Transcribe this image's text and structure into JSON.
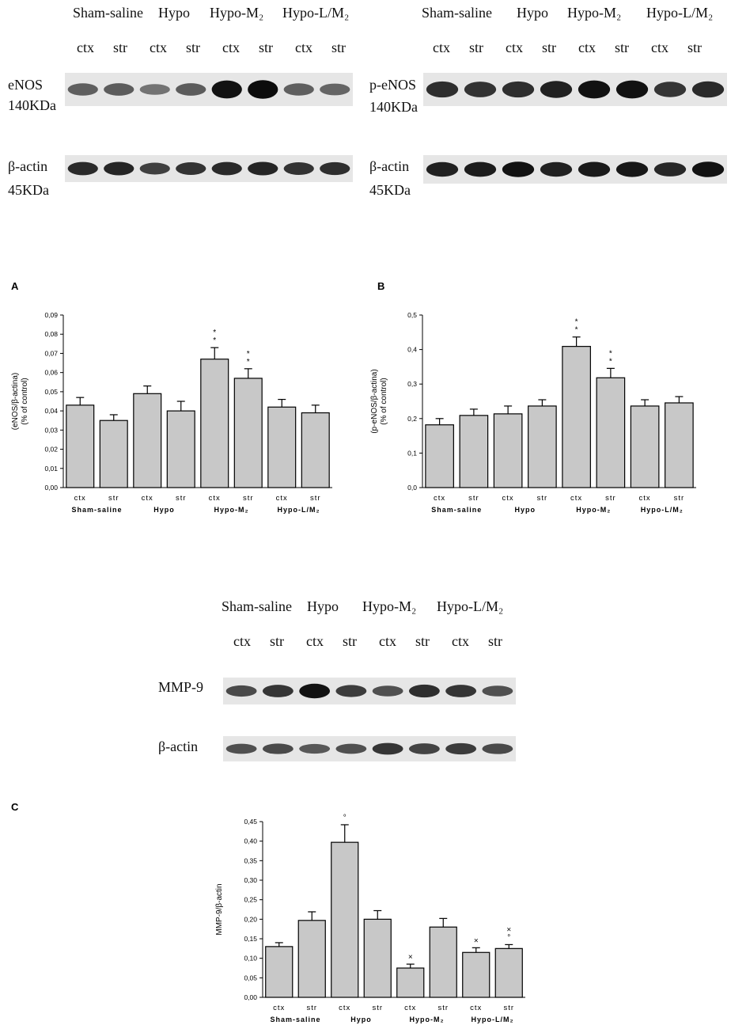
{
  "blots": [
    {
      "id": "eNOS",
      "group_labels": [
        "Sham-saline",
        "Hypo",
        "Hypo-M₂",
        "Hypo-L/M₂"
      ],
      "lane_labels": [
        "ctx",
        "str",
        "ctx",
        "str",
        "ctx",
        "str",
        "ctx",
        "str"
      ],
      "rows": [
        {
          "name": "eNOS",
          "mw": "140KDa",
          "intensities": [
            0.4,
            0.42,
            0.25,
            0.42,
            0.95,
            1.0,
            0.4,
            0.35
          ]
        },
        {
          "name": "β-actin",
          "mw": "45KDa",
          "intensities": [
            0.78,
            0.82,
            0.62,
            0.72,
            0.78,
            0.82,
            0.72,
            0.75
          ]
        }
      ]
    },
    {
      "id": "p-eNOS",
      "group_labels": [
        "Sham-saline",
        "Hypo",
        "Hypo-M₂",
        "Hypo-L/M₂"
      ],
      "lane_labels": [
        "ctx",
        "str",
        "ctx",
        "str",
        "ctx",
        "str",
        "ctx",
        "str"
      ],
      "rows": [
        {
          "name": "p-eNOS",
          "mw": "140KDa",
          "intensities": [
            0.75,
            0.72,
            0.75,
            0.85,
            0.95,
            0.95,
            0.7,
            0.78
          ]
        },
        {
          "name": "β-actin",
          "mw": "45KDa",
          "intensities": [
            0.85,
            0.88,
            0.95,
            0.85,
            0.9,
            0.92,
            0.8,
            0.95
          ]
        }
      ]
    },
    {
      "id": "MMP-9",
      "group_labels": [
        "Sham-saline",
        "Hypo",
        "Hypo-M₂",
        "Hypo-L/M₂"
      ],
      "lane_labels": [
        "ctx",
        "str",
        "ctx",
        "str",
        "ctx",
        "str",
        "ctx",
        "str"
      ],
      "rows": [
        {
          "name": "MMP-9",
          "mw": "",
          "intensities": [
            0.55,
            0.7,
            0.95,
            0.65,
            0.5,
            0.75,
            0.7,
            0.5
          ]
        },
        {
          "name": "β-actin",
          "mw": "",
          "intensities": [
            0.5,
            0.55,
            0.45,
            0.5,
            0.7,
            0.6,
            0.65,
            0.55
          ]
        }
      ]
    }
  ],
  "chart_data": [
    {
      "panel": "A",
      "type": "bar",
      "categories": [
        "ctx",
        "str",
        "ctx",
        "str",
        "ctx",
        "str",
        "ctx",
        "str"
      ],
      "groups": [
        "Sham-saline",
        "Hypo",
        "Hypo-M₂",
        "Hypo-L/M₂"
      ],
      "values": [
        0.043,
        0.035,
        0.049,
        0.04,
        0.067,
        0.057,
        0.042,
        0.039
      ],
      "errors": [
        0.004,
        0.003,
        0.004,
        0.005,
        0.006,
        0.005,
        0.004,
        0.004
      ],
      "annotations": [
        "",
        "",
        "",
        "",
        "*\n*",
        "*\n*",
        "",
        ""
      ],
      "ylabel": "(eNOS/β-actina)\n(% of control)",
      "ylim": [
        0,
        0.09
      ],
      "yticks": [
        "0,00",
        "0,01",
        "0,02",
        "0,03",
        "0,04",
        "0,05",
        "0,06",
        "0,07",
        "0,08",
        "0,09"
      ],
      "grid": false
    },
    {
      "panel": "B",
      "type": "bar",
      "categories": [
        "ctx",
        "str",
        "ctx",
        "str",
        "ctx",
        "str",
        "ctx",
        "str"
      ],
      "groups": [
        "Sham-saline",
        "Hypo",
        "Hypo-M₂",
        "Hypo-L/M₂"
      ],
      "values": [
        0.2,
        0.23,
        0.235,
        0.26,
        0.45,
        0.35,
        0.26,
        0.27
      ],
      "errors": [
        0.02,
        0.02,
        0.025,
        0.02,
        0.03,
        0.03,
        0.02,
        0.02
      ],
      "annotations": [
        "",
        "",
        "",
        "",
        "*\n*",
        "*\n*",
        "",
        ""
      ],
      "ylabel": "(p-eNOS/β-actina)\n(% of control)",
      "ylim": [
        0,
        0.55
      ],
      "yticks": [
        "0,0",
        "0,1",
        "0,2",
        "0,3",
        "0,4",
        "0,5"
      ],
      "grid": false
    },
    {
      "panel": "C",
      "type": "bar",
      "categories": [
        "ctx",
        "str",
        "ctx",
        "str",
        "ctx",
        "str",
        "ctx",
        "str"
      ],
      "groups": [
        "Sham-saline",
        "Hypo",
        "Hypo-M₂",
        "Hypo-L/M₂"
      ],
      "values": [
        0.13,
        0.197,
        0.397,
        0.2,
        0.075,
        0.18,
        0.115,
        0.125
      ],
      "errors": [
        0.01,
        0.022,
        0.045,
        0.022,
        0.01,
        0.022,
        0.012,
        0.01
      ],
      "annotations": [
        "",
        "",
        "°",
        "",
        "×",
        "",
        "×",
        "×\n°"
      ],
      "ylabel": "MMP-9/β-actin",
      "ylim": [
        0,
        0.45
      ],
      "yticks": [
        "0,00",
        "0,05",
        "0,10",
        "0,15",
        "0,20",
        "0,25",
        "0,30",
        "0,35",
        "0,40",
        "0,45"
      ],
      "grid": false
    }
  ],
  "colors": {
    "bar_fill": "#c8c8c8",
    "bar_stroke": "#000000",
    "blot_bg": "#e6e6e6",
    "band": "#000000"
  }
}
